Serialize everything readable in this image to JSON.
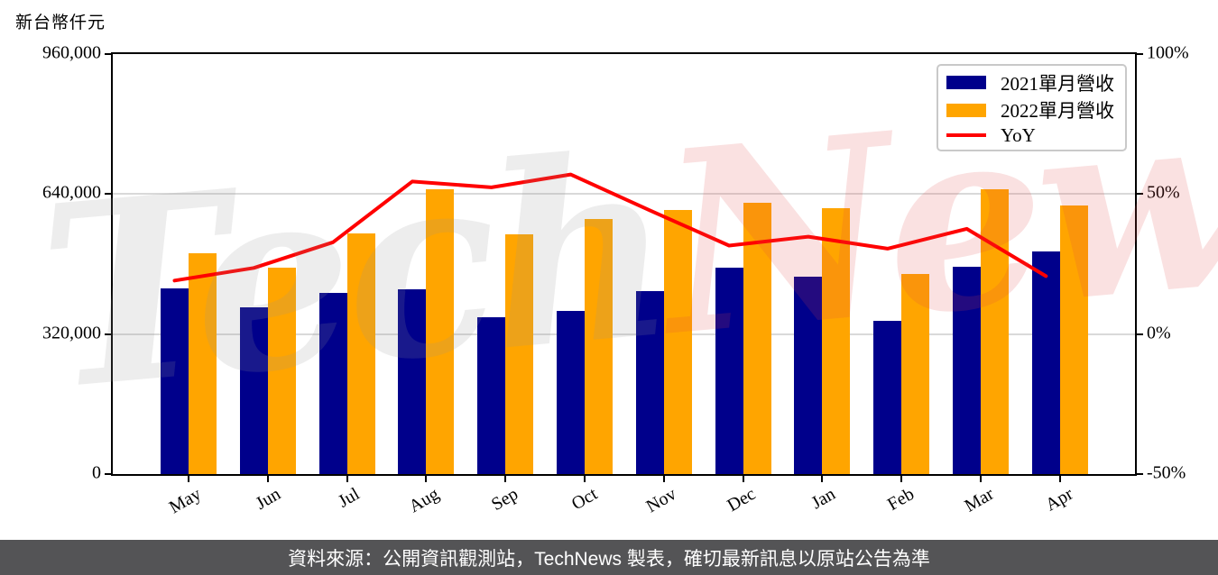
{
  "axis_title": "新台幣仟元",
  "watermark": {
    "part1": "Tech",
    "part2": "News"
  },
  "legend": {
    "items": [
      {
        "label": "2021單月營收",
        "color": "#00008B",
        "type": "patch"
      },
      {
        "label": "2022單月營收",
        "color": "#FFA500",
        "type": "patch"
      },
      {
        "label": "YoY",
        "color": "#FF0000",
        "type": "line"
      }
    ]
  },
  "footer": {
    "text": "資料來源：公開資訊觀測站，TechNews 製表，確切最新訊息以原站公告為準"
  },
  "chart_data": {
    "type": "bar",
    "title": "新台幣仟元",
    "categories": [
      "May",
      "Jun",
      "Jul",
      "Aug",
      "Sep",
      "Oct",
      "Nov",
      "Dec",
      "Jan",
      "Feb",
      "Mar",
      "Apr"
    ],
    "series": [
      {
        "name": "2021單月營收",
        "type": "bar",
        "axis": "left",
        "color": "#00008B",
        "values": [
          424000,
          382000,
          415000,
          422000,
          359000,
          372000,
          419000,
          472000,
          451000,
          351000,
          474000,
          508000
        ]
      },
      {
        "name": "2022單月營收",
        "type": "bar",
        "axis": "left",
        "color": "#FFA500",
        "values": [
          505000,
          472000,
          551000,
          652000,
          547000,
          584000,
          604000,
          621000,
          608000,
          458000,
          652000,
          613000
        ]
      },
      {
        "name": "YoY",
        "type": "line",
        "axis": "right",
        "color": "#FF0000",
        "values": [
          19.1,
          23.6,
          32.8,
          54.5,
          52.4,
          57.0,
          44.2,
          31.6,
          34.8,
          30.5,
          37.6,
          20.7
        ]
      }
    ],
    "left_axis": {
      "unit": "新台幣仟元",
      "range": [
        0,
        960000
      ],
      "ticks": [
        {
          "value": 0,
          "label": "0"
        },
        {
          "value": 320000,
          "label": "320,000"
        },
        {
          "value": 640000,
          "label": "640,000"
        },
        {
          "value": 960000,
          "label": "960,000"
        }
      ]
    },
    "right_axis": {
      "unit": "%",
      "range": [
        -50,
        100
      ],
      "ticks": [
        {
          "value": -50,
          "label": "-50%"
        },
        {
          "value": 0,
          "label": "0%"
        },
        {
          "value": 50,
          "label": "50%"
        },
        {
          "value": 100,
          "label": "100%"
        }
      ]
    },
    "grid": true,
    "legend_position": "top-right"
  }
}
